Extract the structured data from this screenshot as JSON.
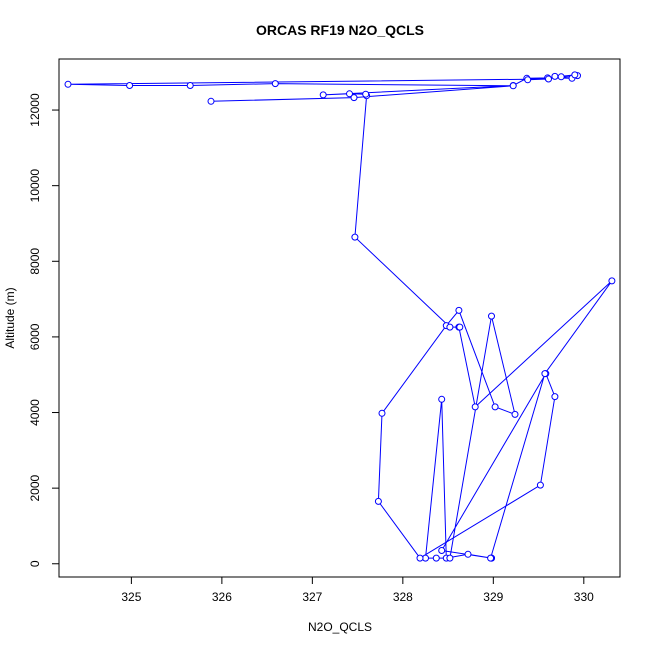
{
  "chart_data": {
    "type": "line",
    "title": "ORCAS RF19 N2O_QCLS",
    "xlabel": "N2O_QCLS",
    "ylabel": "Altitude (m)",
    "xlim": [
      324.2,
      330.4
    ],
    "ylim": [
      -350,
      13350
    ],
    "x_ticks": [
      325,
      326,
      327,
      328,
      329,
      330
    ],
    "x_tick_labels": [
      "325",
      "326",
      "327",
      "328",
      "329",
      "330"
    ],
    "y_ticks": [
      0,
      2000,
      4000,
      6000,
      8000,
      10000,
      12000
    ],
    "y_tick_labels": [
      "0",
      "2000",
      "4000",
      "6000",
      "8000",
      "10000",
      "12000"
    ],
    "grid": false,
    "line_color": "#0000ff",
    "marker": "open-circle",
    "series": [
      {
        "x": [
          328.98,
          328.72,
          328.48,
          328.43,
          328.25,
          328.37,
          328.52,
          328.98,
          329.24,
          329.02,
          328.62,
          328.48,
          327.77,
          327.73,
          328.19,
          329.52,
          329.68,
          329.58,
          328.43,
          328.98,
          328.97,
          329.57,
          330.31,
          328.8,
          328.62,
          328.63,
          328.52,
          327.47,
          327.6,
          327.59,
          327.41,
          327.12,
          329.22,
          329.37,
          329.6,
          329.87,
          329.68,
          329.75,
          329.93,
          329.9,
          329.38,
          329.61,
          324.3,
          324.98,
          325.65,
          326.59,
          329.22,
          327.46,
          325.88
        ],
        "y": [
          150,
          250,
          150,
          4350,
          150,
          150,
          150,
          6550,
          3950,
          4150,
          6700,
          6300,
          3980,
          1650,
          150,
          2080,
          4420,
          5030,
          350,
          150,
          150,
          5030,
          7480,
          4150,
          6260,
          6260,
          6260,
          8640,
          12380,
          12420,
          12430,
          12400,
          12650,
          12840,
          12850,
          12840,
          12890,
          12880,
          12910,
          12930,
          12800,
          12820,
          12680,
          12650,
          12650,
          12700,
          12640,
          12330,
          12230
        ]
      }
    ]
  }
}
